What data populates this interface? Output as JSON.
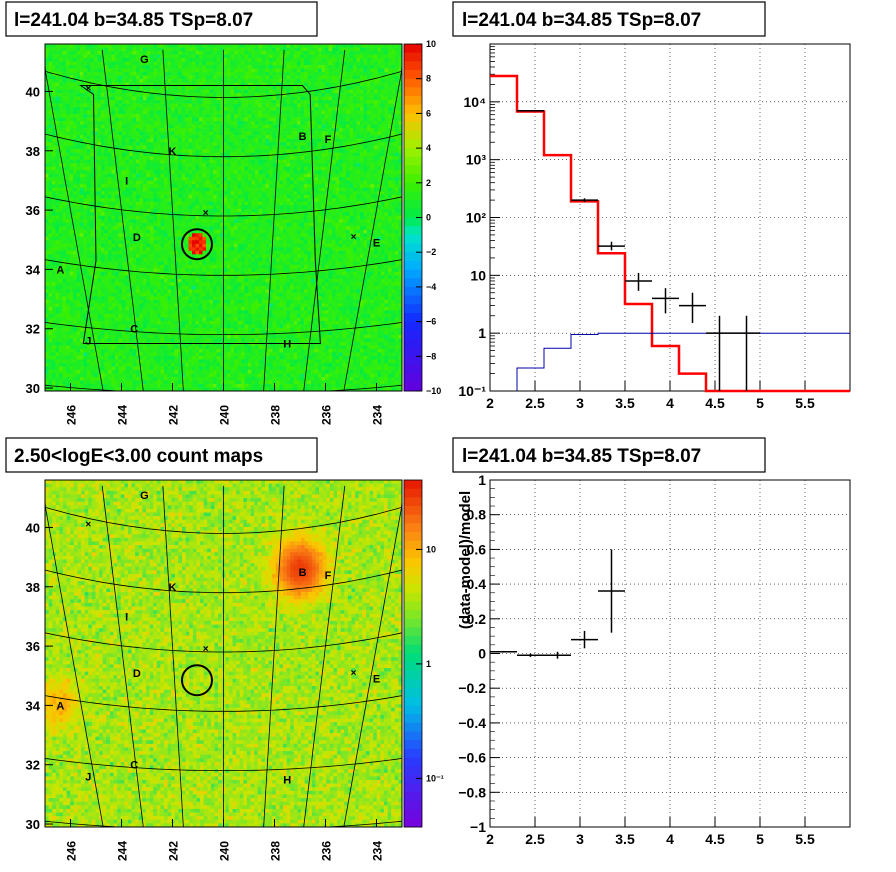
{
  "panels": {
    "tl_title": "l=241.04 b=34.85 TSp=8.07",
    "tr_title": "l=241.04 b=34.85 TSp=8.07",
    "bl_title": "2.50<logE<3.00 count maps",
    "br_title": "l=241.04 b=34.85 TSp=8.07"
  },
  "chart_data": [
    {
      "type": "heatmap",
      "title": "l=241.04 b=34.85 TSp=8.07",
      "x_ticks": [
        "246",
        "244",
        "242",
        "240",
        "238",
        "236",
        "234"
      ],
      "y_ticks": [
        "30",
        "32",
        "34",
        "36",
        "38",
        "40"
      ],
      "xlim": [
        247,
        233
      ],
      "ylim": [
        29.9,
        41.6
      ],
      "colorbar_ticks": [
        "10",
        "8",
        "6",
        "4",
        "2",
        "0",
        "−2",
        "−4",
        "−6",
        "−8",
        "−10"
      ],
      "colorbar_range": [
        -10,
        10
      ],
      "labels": [
        {
          "text": "G",
          "l": 243.1,
          "b": 41.1
        },
        {
          "text": "B",
          "l": 236.9,
          "b": 38.5
        },
        {
          "text": "F",
          "l": 235.9,
          "b": 38.4
        },
        {
          "text": "K",
          "l": 242.0,
          "b": 38.0
        },
        {
          "text": "I",
          "l": 243.8,
          "b": 37.0
        },
        {
          "text": "D",
          "l": 243.4,
          "b": 35.1
        },
        {
          "text": "E",
          "l": 234.0,
          "b": 34.9
        },
        {
          "text": "A",
          "l": 246.4,
          "b": 34.0
        },
        {
          "text": "C",
          "l": 243.5,
          "b": 32.0
        },
        {
          "text": "J",
          "l": 245.3,
          "b": 31.6
        },
        {
          "text": "H",
          "l": 237.5,
          "b": 31.5
        }
      ],
      "markers": [
        {
          "l": 245.3,
          "b": 40.1
        },
        {
          "l": 240.7,
          "b": 35.9
        },
        {
          "l": 234.9,
          "b": 35.1
        }
      ],
      "circle": {
        "l": 241.04,
        "b": 34.85
      }
    },
    {
      "type": "line",
      "title": "l=241.04 b=34.85 TSp=8.07",
      "xlim": [
        2,
        6
      ],
      "ylim": [
        0.1,
        100000
      ],
      "yscale": "log",
      "grid": true,
      "x_ticks": [
        "2",
        "2.5",
        "3",
        "3.5",
        "4",
        "4.5",
        "5",
        "5.5"
      ],
      "y_ticks": [
        "10⁻¹",
        "1",
        "10",
        "10²",
        "10³",
        "10⁴"
      ],
      "series": [
        {
          "kind": "step",
          "color": "#ff0000",
          "edges": [
            2,
            2.3,
            2.6,
            2.9,
            3.2,
            3.5,
            3.8,
            4.1,
            4.4,
            4.7,
            6
          ],
          "values": [
            28000,
            6800,
            1200,
            190,
            24,
            3.2,
            0.6,
            0.2,
            0.1,
            0.1
          ]
        },
        {
          "kind": "step",
          "color": "#0000aa",
          "edges": [
            2.3,
            2.6,
            2.9,
            3.2,
            6
          ],
          "values": [
            0.25,
            0.55,
            0.95,
            1.0
          ]
        },
        {
          "kind": "errorbar",
          "color": "#000000",
          "points": [
            {
              "x": 2.45,
              "y": 7000,
              "xerr": 0.15,
              "ylo": 6800,
              "yhi": 7200
            },
            {
              "x": 3.05,
              "y": 200,
              "xerr": 0.15,
              "ylo": 185,
              "yhi": 215
            },
            {
              "x": 3.35,
              "y": 32,
              "xerr": 0.15,
              "ylo": 27,
              "yhi": 38
            },
            {
              "x": 3.65,
              "y": 8,
              "xerr": 0.15,
              "ylo": 5.4,
              "yhi": 11
            },
            {
              "x": 3.95,
              "y": 4,
              "xerr": 0.15,
              "ylo": 2.2,
              "yhi": 6
            },
            {
              "x": 4.25,
              "y": 3,
              "xerr": 0.15,
              "ylo": 1.5,
              "yhi": 5
            },
            {
              "x": 4.55,
              "y": 1,
              "xerr": 0.15,
              "ylo": 0.1,
              "yhi": 2
            },
            {
              "x": 4.85,
              "y": 1,
              "xerr": 0.15,
              "ylo": 0.1,
              "yhi": 2
            }
          ]
        }
      ]
    },
    {
      "type": "heatmap",
      "title": "2.50<logE<3.00 count maps",
      "x_ticks": [
        "246",
        "244",
        "242",
        "240",
        "238",
        "236",
        "234"
      ],
      "y_ticks": [
        "30",
        "32",
        "34",
        "36",
        "38",
        "40"
      ],
      "xlim": [
        247,
        233
      ],
      "ylim": [
        29.9,
        41.6
      ],
      "colorbar_ticks": [
        "10",
        "1",
        "10⁻¹"
      ],
      "colorbar_scale": "log",
      "colorbar_range": [
        0.04,
        40
      ],
      "hotspots": [
        {
          "l": 237.0,
          "b": 38.6,
          "level": "high"
        },
        {
          "l": 246.5,
          "b": 34.0,
          "level": "medium"
        }
      ]
    },
    {
      "type": "scatter",
      "title": "l=241.04 b=34.85 TSp=8.07",
      "ylabel": "(data-model)/model",
      "xlim": [
        2,
        6
      ],
      "ylim": [
        -1,
        1
      ],
      "grid": true,
      "x_ticks": [
        "2",
        "2.5",
        "3",
        "3.5",
        "4",
        "4.5",
        "5",
        "5.5"
      ],
      "y_ticks": [
        "1",
        "0.8",
        "0.6",
        "0.4",
        "0.2",
        "0",
        "−0.2",
        "−0.4",
        "−0.6",
        "−0.8",
        "−1"
      ],
      "points": [
        {
          "x": 2.15,
          "y": 0.01,
          "xerr": 0.15,
          "ylo": 0.005,
          "yhi": 0.015
        },
        {
          "x": 2.45,
          "y": -0.01,
          "xerr": 0.15,
          "ylo": -0.02,
          "yhi": 0.0
        },
        {
          "x": 2.75,
          "y": -0.01,
          "xerr": 0.15,
          "ylo": -0.03,
          "yhi": 0.01
        },
        {
          "x": 3.05,
          "y": 0.08,
          "xerr": 0.15,
          "ylo": 0.03,
          "yhi": 0.13
        },
        {
          "x": 3.35,
          "y": 0.36,
          "xerr": 0.15,
          "ylo": 0.12,
          "yhi": 0.6
        }
      ]
    }
  ]
}
